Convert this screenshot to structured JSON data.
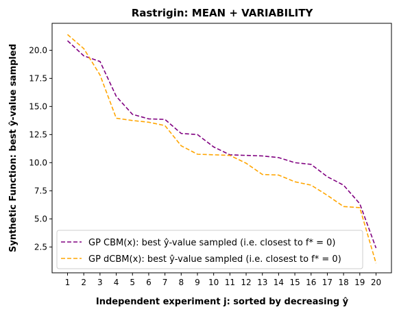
{
  "chart_data": {
    "type": "line",
    "title": "Rastrigin: MEAN + VARIABILITY",
    "xlabel": "Independent experiment j: sorted by decreasing ŷ",
    "ylabel": "Synthetic Function: best ŷ-value sampled",
    "x": [
      1,
      2,
      3,
      4,
      5,
      6,
      7,
      8,
      9,
      10,
      11,
      12,
      13,
      14,
      15,
      16,
      17,
      18,
      19,
      20
    ],
    "xticks": [
      "1",
      "2",
      "3",
      "4",
      "5",
      "6",
      "7",
      "8",
      "9",
      "10",
      "11",
      "12",
      "13",
      "14",
      "15",
      "16",
      "17",
      "18",
      "19",
      "20"
    ],
    "yticks": [
      "2.5",
      "5.0",
      "7.5",
      "10.0",
      "12.5",
      "15.0",
      "17.5",
      "20.0"
    ],
    "ylim": [
      0.2,
      22.4
    ],
    "xlim": [
      0.05,
      20.95
    ],
    "legend_position": "lower-left",
    "grid": false,
    "series": [
      {
        "name": "GP CBM(x):   best ŷ-value sampled (i.e. closest to f* = 0)",
        "color": "#800080",
        "style": "dashed",
        "values": [
          20.85,
          19.5,
          19.0,
          15.9,
          14.3,
          13.9,
          13.85,
          12.6,
          12.5,
          11.4,
          10.7,
          10.65,
          10.6,
          10.45,
          10.0,
          9.85,
          8.75,
          8.0,
          6.35,
          2.4
        ]
      },
      {
        "name": "GP dCBM(x): best ŷ-value sampled (i.e. closest to f* = 0)",
        "color": "#FFA500",
        "style": "dashed",
        "values": [
          21.4,
          20.15,
          17.8,
          13.95,
          13.75,
          13.6,
          13.3,
          11.5,
          10.75,
          10.7,
          10.65,
          9.95,
          8.95,
          8.9,
          8.3,
          8.0,
          7.1,
          6.1,
          6.0,
          1.05
        ]
      }
    ]
  }
}
